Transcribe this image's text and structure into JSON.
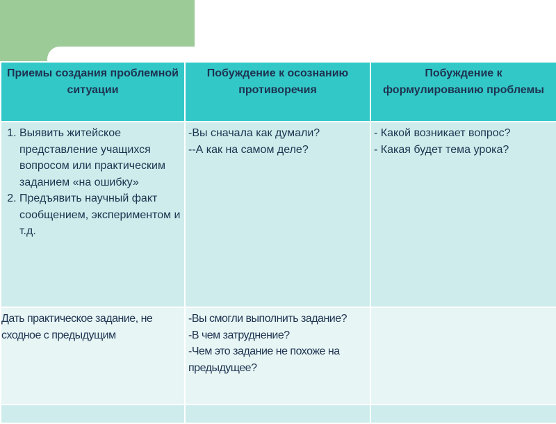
{
  "headers": [
    "Приемы создания проблемной ситуации",
    "Побуждение к осознанию противоречия",
    "Побуждение к формулированию проблемы"
  ],
  "row1": {
    "col1": [
      "Выявить житейское представление учащихся вопросом или практическим заданием «на ошибку»",
      "Предъявить научный факт сообщением, экспериментом и т.д."
    ],
    "col2": [
      "-Вы сначала как думали?",
      "--А как на самом деле?"
    ],
    "col3": [
      "- Какой возникает вопрос?",
      "- Какая будет тема урока?"
    ]
  },
  "row2": {
    "col1": "Дать практическое задание, не сходное с предыдущим",
    "col2": [
      "-Вы смогли выполнить задание?",
      "-В чем затруднение?",
      "-Чем это задание не похоже на предыдущее?"
    ],
    "col3": ""
  }
}
